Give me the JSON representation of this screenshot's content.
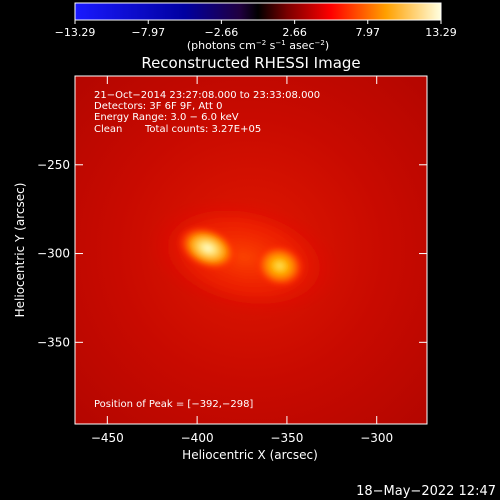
{
  "colorbar": {
    "ticks": [
      "−13.29",
      "−7.97",
      "−2.66",
      "2.66",
      "7.97",
      "13.29"
    ],
    "tick_values": [
      -13.29,
      -7.97,
      -2.66,
      2.66,
      7.97,
      13.29
    ],
    "unit_main": "(photons cm",
    "unit_sup1": "−2",
    "unit_mid": " s",
    "unit_sup2": "−1",
    "unit_mid2": " asec",
    "unit_sup3": "−2",
    "unit_end": ")"
  },
  "annotation": {
    "line1": "21−Oct−2014 23:27:08.000 to 23:33:08.000",
    "line2": "Detectors: 3F 6F 9F, Att 0",
    "line3": "Energy Range: 3.0 − 6.0 keV",
    "line4a": "Clean",
    "line4b": "Total counts: 3.27E+05",
    "peak": "Position of Peak = [−392,−298]"
  },
  "footer_timestamp": "18−May−2022 12:47",
  "chart_data": {
    "type": "heatmap",
    "title": "Reconstructed RHESSI Image",
    "xlabel": "Heliocentric X (arcsec)",
    "ylabel": "Heliocentric Y (arcsec)",
    "xlim": [
      -468,
      -272
    ],
    "ylim": [
      -396,
      -200
    ],
    "x_ticks": [
      -450,
      -400,
      -350,
      -300
    ],
    "x_tick_labels": [
      "−450",
      "−400",
      "−350",
      "−300"
    ],
    "y_ticks": [
      -250,
      -300,
      -350
    ],
    "y_tick_labels": [
      "−250",
      "−300",
      "−350"
    ],
    "colormap": "hot",
    "color_range": [
      -13.29,
      13.29
    ],
    "sources": [
      {
        "x": -394,
        "y": -297,
        "peak": 13.29
      },
      {
        "x": -354,
        "y": -307,
        "peak": 11.5
      }
    ],
    "background_level": 5.0,
    "peak_position": [
      -392,
      -298
    ]
  }
}
